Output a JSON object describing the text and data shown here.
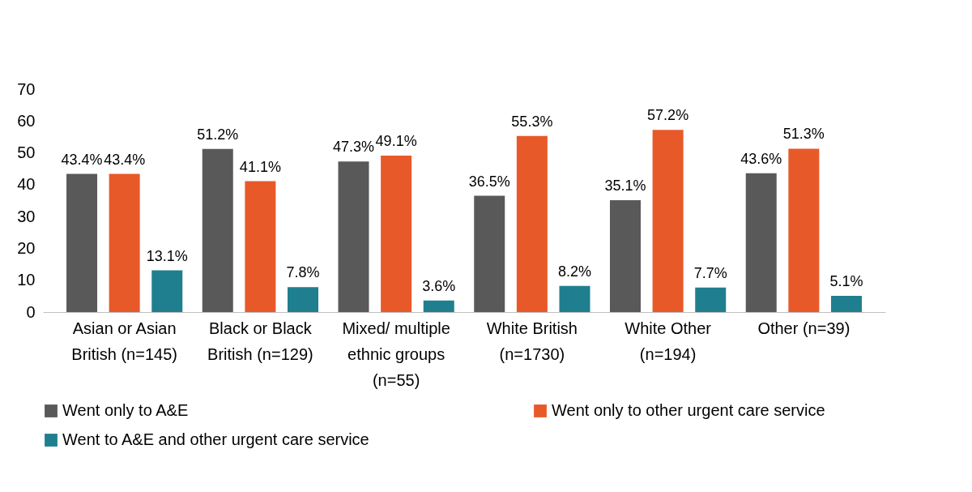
{
  "chart_data": {
    "type": "bar",
    "categories": [
      "Asian or Asian British (n=145)",
      "Black or Black British (n=129)",
      "Mixed/ multiple ethnic groups (n=55)",
      "White British (n=1730)",
      "White Other (n=194)",
      "Other (n=39)"
    ],
    "series": [
      {
        "name": "Went only to A&E",
        "color": "#595959",
        "values": [
          43.4,
          51.2,
          47.3,
          36.5,
          35.1,
          43.6
        ],
        "value_labels": [
          "43.4%",
          "51.2%",
          "47.3%",
          "36.5%",
          "35.1%",
          "43.6%"
        ]
      },
      {
        "name": "Went only to other urgent care service",
        "color": "#e8592a",
        "values": [
          43.4,
          41.1,
          49.1,
          55.3,
          57.2,
          51.3
        ],
        "value_labels": [
          "43.4%",
          "41.1%",
          "49.1%",
          "55.3%",
          "57.2%",
          "51.3%"
        ]
      },
      {
        "name": "Went to A&E and other urgent care service",
        "color": "#1f7f8f",
        "values": [
          13.1,
          7.8,
          3.6,
          8.2,
          7.7,
          5.1
        ],
        "value_labels": [
          "13.1%",
          "7.8%",
          "3.6%",
          "8.2%",
          "7.7%",
          "5.1%"
        ]
      }
    ],
    "ylim": [
      0,
      70
    ],
    "yticks": [
      0,
      10,
      20,
      30,
      40,
      50,
      60,
      70
    ],
    "grid": false,
    "legend": "bottom"
  }
}
